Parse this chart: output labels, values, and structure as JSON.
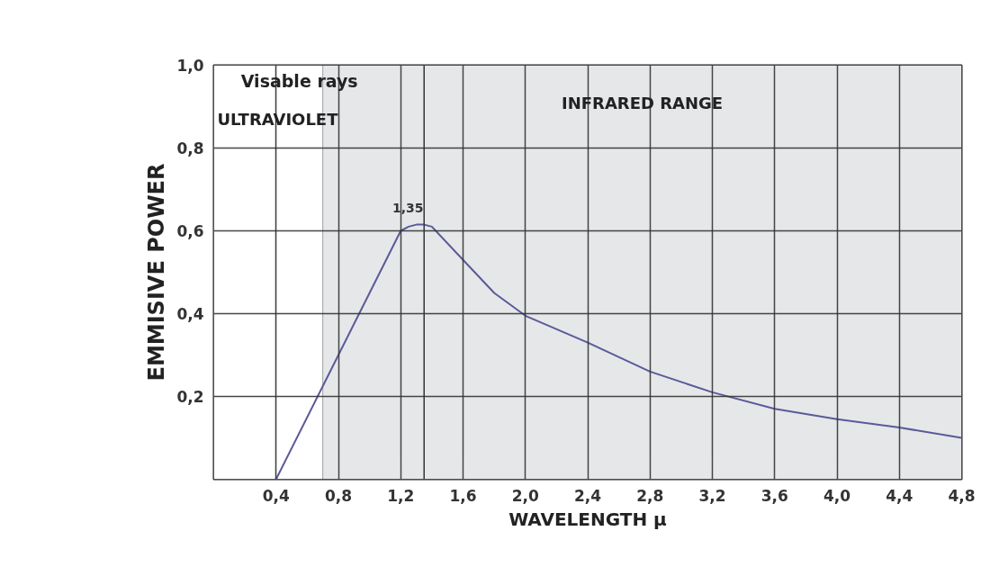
{
  "chart_data": {
    "type": "line",
    "xlabel": "WAVELENGTH μ",
    "ylabel": "EMMISIVE POWER",
    "x": [
      0.4,
      0.8,
      1.0,
      1.2,
      1.25,
      1.3,
      1.35,
      1.4,
      1.6,
      1.8,
      2.0,
      2.4,
      2.8,
      3.2,
      3.6,
      4.0,
      4.4,
      4.8
    ],
    "series": [
      {
        "color": "#5a5a9a",
        "values": [
          0,
          0.3,
          0.45,
          0.6,
          0.61,
          0.615,
          0.615,
          0.61,
          0.53,
          0.45,
          0.395,
          0.33,
          0.26,
          0.21,
          0.17,
          0.145,
          0.125,
          0.1
        ]
      }
    ],
    "xlim": [
      0,
      4.8
    ],
    "ylim": [
      0,
      1.0
    ],
    "xticks": [
      {
        "value": 0.4,
        "label": "0,4"
      },
      {
        "value": 0.8,
        "label": "0,8"
      },
      {
        "value": 1.2,
        "label": "1,2"
      },
      {
        "value": 1.6,
        "label": "1,6"
      },
      {
        "value": 2.0,
        "label": "2,0"
      },
      {
        "value": 2.4,
        "label": "2,4"
      },
      {
        "value": 2.8,
        "label": "2,8"
      },
      {
        "value": 3.2,
        "label": "3,2"
      },
      {
        "value": 3.6,
        "label": "3,6"
      },
      {
        "value": 4.0,
        "label": "4,0"
      },
      {
        "value": 4.4,
        "label": "4,4"
      },
      {
        "value": 4.8,
        "label": "4,8"
      }
    ],
    "yticks": [
      {
        "value": 0.2,
        "label": "0,2"
      },
      {
        "value": 0.4,
        "label": "0,4"
      },
      {
        "value": 0.6,
        "label": "0,6"
      },
      {
        "value": 0.8,
        "label": "0,8"
      },
      {
        "value": 1.0,
        "label": "1,0"
      }
    ],
    "bands": [
      {
        "axis": "x",
        "from": 0,
        "to": 0.4,
        "label": "ULTRAVIOLET",
        "color": "#ffffff"
      },
      {
        "axis": "x",
        "from": 0.4,
        "to": 0.7,
        "label": "Visable rays",
        "color": "#ffffff"
      },
      {
        "axis": "x",
        "from": 0.7,
        "to": 4.8,
        "label": "INFRARED RANGE",
        "color": "#e6e7e9"
      }
    ],
    "ref_lines": [
      {
        "axis": "x",
        "value": 1.35,
        "label": "1,35",
        "color": "#333333"
      }
    ],
    "grid": true,
    "marker": "none",
    "line_style": "solid"
  }
}
